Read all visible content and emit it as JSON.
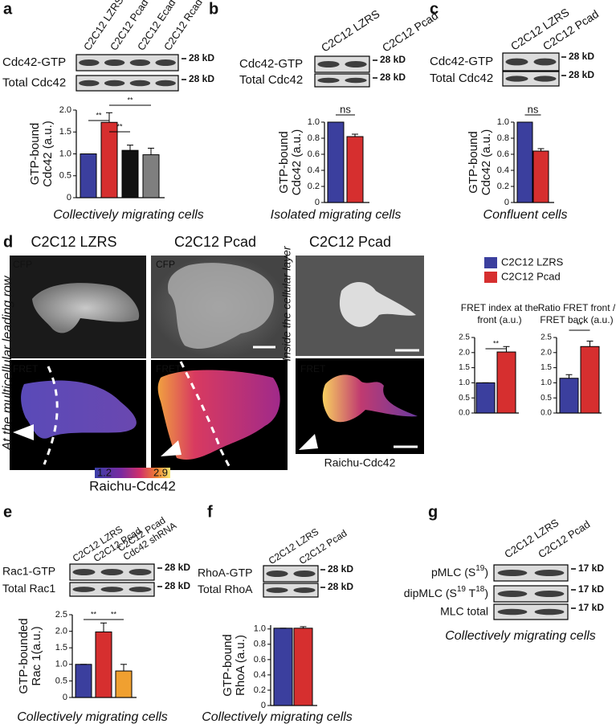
{
  "panel_labels": [
    "a",
    "b",
    "c",
    "d",
    "e",
    "f",
    "g"
  ],
  "blots": [
    {
      "lanes": [
        "C2C12 LZRS",
        "C2C12 Pcad",
        "C2C12 Ecad",
        "C2C12 Rcad"
      ],
      "lane_colors": [
        "#4a4aa8",
        "#d43030",
        "#111111",
        "#9a9a9a"
      ],
      "rows": [
        {
          "label": "Cdc42-GTP",
          "size": "28 kD"
        },
        {
          "label": "Total Cdc42",
          "size": "28 kD"
        }
      ]
    },
    {
      "lanes": [
        "C2C12 LZRS",
        "C2C12 Pcad"
      ],
      "lane_colors": [
        "#4a4aa8",
        "#d43030"
      ],
      "rows": [
        {
          "label": "Cdc42-GTP",
          "size": "28 kD"
        },
        {
          "label": "Total Cdc42",
          "size": "28 kD"
        }
      ]
    },
    {
      "lanes": [
        "C2C12 LZRS",
        "C2C12 Pcad"
      ],
      "lane_colors": [
        "#4a4aa8",
        "#d43030"
      ],
      "rows": [
        {
          "label": "Cdc42-GTP",
          "size": "28 kD"
        },
        {
          "label": "Total Cdc42",
          "size": "28 kD"
        }
      ]
    },
    {
      "lanes": [
        "C2C12 LZRS",
        "C2C12 Pcad",
        [
          "C2C12 Pcad",
          "Cdc42 shRNA"
        ]
      ],
      "lane_colors": [
        "#4a4aa8",
        "#d43030",
        "#e8962a"
      ],
      "rows": [
        {
          "label": "Rac1-GTP",
          "size": "28 kD"
        },
        {
          "label": "Total Rac1",
          "size": "28 kD"
        }
      ]
    },
    {
      "lanes": [
        "C2C12 LZRS",
        "C2C12 Pcad"
      ],
      "lane_colors": [
        "#4a4aa8",
        "#d43030"
      ],
      "rows": [
        {
          "label": "RhoA-GTP",
          "size": "28 kD"
        },
        {
          "label": "Total RhoA",
          "size": "28 kD"
        }
      ]
    },
    {
      "lanes": [
        "C2C12 LZRS",
        "C2C12 Pcad"
      ],
      "lane_colors": [
        "#4a4aa8",
        "#d43030"
      ],
      "rows": [
        {
          "label": [
            "pMLC (S",
            "19",
            ")"
          ],
          "size": "17 kD"
        },
        {
          "label": [
            "dipMLC (S",
            "19",
            " T",
            "18",
            ")"
          ],
          "size": "17 kD"
        },
        {
          "label": [
            "MLC total"
          ],
          "size": "17 kD"
        }
      ],
      "caption": "Collectively migrating cells"
    }
  ],
  "microscopy": {
    "columns": [
      "C2C12 LZRS",
      "C2C12 Pcad",
      "C2C12 Pcad"
    ],
    "column_colors": [
      "#4a4aa8",
      "#d43030",
      "#d43030"
    ],
    "channels": [
      "CFP",
      "CFP",
      "FRET",
      "FRET",
      "FRET"
    ],
    "side_labels": [
      "At the multicellular leading row",
      "Inside the cellular layer"
    ],
    "colorbar_range": [
      1.2,
      2.9
    ],
    "sensor": [
      "Raichu-Cdc42",
      "Raichu-Cdc42"
    ],
    "legend": {
      "names": [
        "C2C12 LZRS",
        "C2C12 Pcad"
      ],
      "colors": [
        "#3b3f9e",
        "#d62f2f"
      ]
    }
  },
  "chart_data": [
    {
      "type": "bar",
      "ylabel": [
        "GTP-bound",
        "Cdc42 (a.u.)"
      ],
      "caption": "Collectively migrating cells",
      "values": [
        1.0,
        1.72,
        1.08,
        0.98
      ],
      "errors": [
        0,
        0.22,
        0.12,
        0.15
      ],
      "colors": [
        "#3b3f9e",
        "#d62f2f",
        "#111111",
        "#7f7f7f"
      ],
      "ylim": [
        0,
        2.0
      ],
      "yticks": [
        0,
        0.5,
        {
          "value": 1,
          "label": "1.0"
        },
        1.5,
        {
          "value": 2,
          "label": "2.0"
        }
      ],
      "significance": [
        "**",
        "**",
        "**"
      ]
    },
    {
      "type": "bar",
      "ylabel": [
        "GTP-bound",
        "Cdc42 (a.u.)"
      ],
      "caption": "Isolated migrating cells",
      "values": [
        1.0,
        0.82
      ],
      "errors": [
        0,
        0.03
      ],
      "colors": [
        "#3b3f9e",
        "#d62f2f"
      ],
      "ylim": [
        0,
        1.0
      ],
      "yticks": [
        0,
        0.2,
        0.4,
        0.6,
        0.8,
        {
          "value": 1,
          "label": "1.0"
        }
      ],
      "significance": [
        "ns"
      ]
    },
    {
      "type": "bar",
      "ylabel": [
        "GTP-bound",
        "Cdc42 (a.u.)"
      ],
      "caption": "Confluent cells",
      "values": [
        1.0,
        0.64
      ],
      "errors": [
        0,
        0.03
      ],
      "colors": [
        "#3b3f9e",
        "#d62f2f"
      ],
      "ylim": [
        0,
        1.0
      ],
      "yticks": [
        0,
        0.2,
        0.4,
        0.6,
        0.8,
        {
          "value": 1,
          "label": "1.0"
        }
      ],
      "significance": [
        "ns"
      ]
    },
    {
      "type": "bar",
      "title": [
        "FRET index at the",
        "front (a.u.)"
      ],
      "values": [
        1.0,
        2.02
      ],
      "errors": [
        0,
        0.18
      ],
      "colors": [
        "#3b3f9e",
        "#d62f2f"
      ],
      "ylim": [
        0,
        2.5
      ],
      "yticks": [
        {
          "value": 0,
          "label": "0.0"
        },
        0.5,
        {
          "value": 1,
          "label": "1.0"
        },
        1.5,
        {
          "value": 2,
          "label": "2.0"
        },
        2.5
      ],
      "significance": [
        "**"
      ]
    },
    {
      "type": "bar",
      "title": [
        "Ratio FRET front /",
        "FRET back (a.u.)"
      ],
      "values": [
        1.15,
        2.2
      ],
      "errors": [
        0.12,
        0.18
      ],
      "colors": [
        "#3b3f9e",
        "#d62f2f"
      ],
      "ylim": [
        0,
        2.5
      ],
      "yticks": [
        {
          "value": 0,
          "label": "0.0"
        },
        0.5,
        {
          "value": 1,
          "label": "1.0"
        },
        1.5,
        {
          "value": 2,
          "label": "2.0"
        },
        2.5
      ],
      "significance": [
        "**"
      ]
    },
    {
      "type": "bar",
      "ylabel": [
        "GTP-bounded",
        "Rac 1(a.u.)"
      ],
      "caption": "Collectively migrating cells",
      "values": [
        1.0,
        1.98,
        0.8
      ],
      "errors": [
        0,
        0.27,
        0.2
      ],
      "colors": [
        "#3b3f9e",
        "#d62f2f",
        "#f0a030"
      ],
      "ylim": [
        0,
        2.5
      ],
      "yticks": [
        0,
        0.5,
        {
          "value": 1,
          "label": "1.0"
        },
        1.5,
        {
          "value": 2,
          "label": "2.0"
        },
        2.5
      ],
      "significance": [
        "**",
        "**"
      ]
    },
    {
      "type": "bar",
      "ylabel": [
        "GTP-bound",
        "RhoA (a.u.)"
      ],
      "caption": "Collectively migrating cells",
      "values": [
        1.01,
        1.01
      ],
      "errors": [
        0,
        0.02
      ],
      "colors": [
        "#3b3f9e",
        "#d62f2f"
      ],
      "ylim": [
        0,
        1.05
      ],
      "yticks": [
        0,
        0.2,
        0.4,
        0.6,
        0.8,
        {
          "value": 1,
          "label": "1.0"
        }
      ],
      "significance": []
    }
  ]
}
